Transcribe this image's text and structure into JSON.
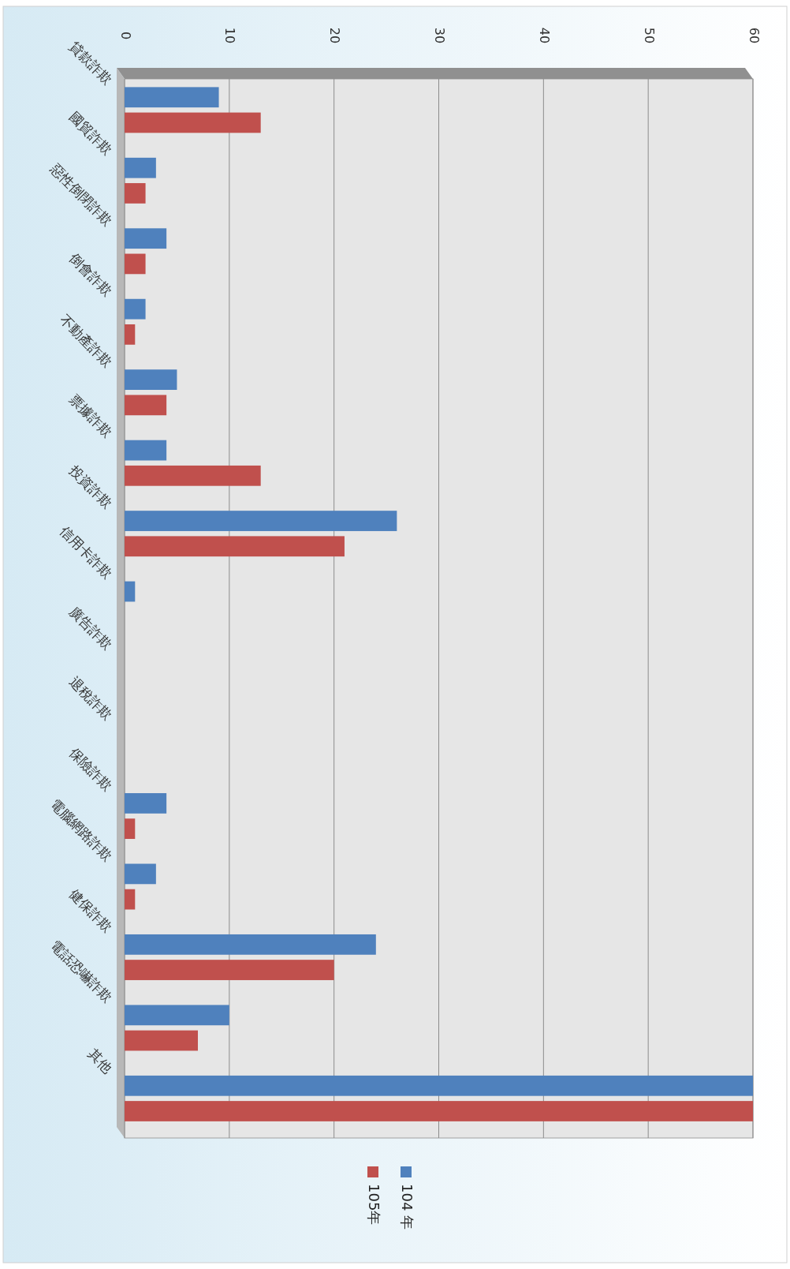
{
  "chart_data": {
    "type": "bar",
    "orientation": "horizontal",
    "categories": [
      "貸款詐欺",
      "國貿詐欺",
      "惡性倒閉詐欺",
      "倒會詐欺",
      "不動產詐欺",
      "票據詐欺",
      "投資詐欺",
      "信用卡詐欺",
      "廣告詐欺",
      "退稅詐欺",
      "保險詐欺",
      "電腦網路詐欺",
      "健保詐欺",
      "電話恐嚇詐欺",
      "其他"
    ],
    "series": [
      {
        "name": "104 年",
        "color": "#4f81bd",
        "values": [
          9,
          3,
          4,
          2,
          5,
          4,
          26,
          1,
          0,
          0,
          4,
          3,
          24,
          10,
          60
        ]
      },
      {
        "name": "105年",
        "color": "#c0504d",
        "values": [
          13,
          2,
          2,
          1,
          4,
          13,
          21,
          0,
          0,
          0,
          1,
          1,
          20,
          7,
          60
        ]
      }
    ],
    "xlim": [
      0,
      60
    ],
    "xticks": [
      0,
      10,
      20,
      30,
      40,
      50,
      60
    ],
    "grid": "x",
    "legend": "bottom"
  }
}
